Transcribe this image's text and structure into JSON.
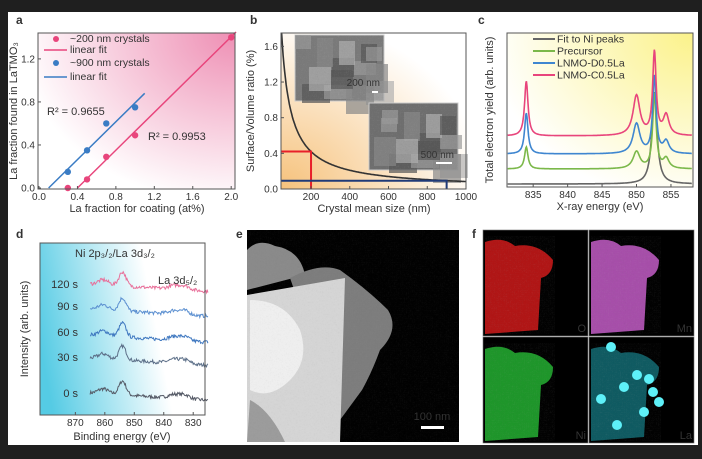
{
  "panel_labels": [
    "a",
    "b",
    "c",
    "d",
    "e",
    "f"
  ],
  "chart_data": [
    {
      "id": "a",
      "type": "scatter",
      "xlabel": "La fraction for coating (at%)",
      "ylabel": "La fraction found in LaTMO₃",
      "xlim": [
        0,
        2.05
      ],
      "ylim": [
        0,
        1.45
      ],
      "xticks": [
        "0.0",
        "0.4",
        "0.8",
        "1.2",
        "1.6",
        "2.0"
      ],
      "yticks": [
        "0.0",
        "0.4",
        "0.8",
        "1.2"
      ],
      "series": [
        {
          "name": "~200 nm crystals",
          "fit_name": "linear fit",
          "color": "#e8457c",
          "x": [
            0.3,
            0.5,
            0.7,
            1.0,
            2.0
          ],
          "y": [
            0.0,
            0.08,
            0.29,
            0.49,
            1.4
          ],
          "fit": {
            "x": [
              0.4,
              2.05
            ],
            "y": [
              0.0,
              1.45
            ]
          },
          "annotation": "R² = 0.9953"
        },
        {
          "name": "~900 nm crystals",
          "fit_name": "linear fit",
          "color": "#3a7cc4",
          "x": [
            0.3,
            0.5,
            0.7,
            1.0
          ],
          "y": [
            0.15,
            0.35,
            0.6,
            0.75
          ],
          "fit": {
            "x": [
              0.1,
              1.1
            ],
            "y": [
              0.0,
              0.88
            ]
          },
          "annotation": "R² = 0.9655"
        }
      ],
      "legend": "top-left",
      "background": "#f3a6c4"
    },
    {
      "id": "b",
      "type": "line",
      "xlabel": "Crystal mean size (nm)",
      "ylabel": "Surface/Volume ratio (%)",
      "xlim": [
        45,
        1000
      ],
      "ylim": [
        0,
        1.75
      ],
      "xticks": [
        "200",
        "400",
        "600",
        "800",
        "1000"
      ],
      "yticks": [
        "0.0",
        "0.4",
        "0.8",
        "1.2",
        "1.6"
      ],
      "curve": {
        "formula": "84/x",
        "color": "#333333"
      },
      "markers": [
        {
          "x": 200,
          "y": 0.42,
          "color": "#e8202a"
        },
        {
          "x": 900,
          "y": 0.093,
          "color": "#1f3a78"
        }
      ],
      "insets": [
        {
          "scale_bar": "200 nm"
        },
        {
          "scale_bar": "500 nm"
        }
      ],
      "background": "#f6c98a"
    },
    {
      "id": "c",
      "type": "line",
      "xlabel": "X-ray energy (eV)",
      "ylabel": "Total electron yield (arb. units)",
      "xlim": [
        831.2,
        858.2
      ],
      "xticks": [
        "835",
        "840",
        "845",
        "850",
        "855"
      ],
      "series": [
        {
          "name": "Fit to Ni peaks",
          "color": "#666666"
        },
        {
          "name": "Precursor",
          "color": "#7bb84a"
        },
        {
          "name": "LNMO-D0.5La",
          "color": "#3f86d0"
        },
        {
          "name": "LNMO-C0.5La",
          "color": "#e8457c"
        }
      ],
      "peaks_eV": [
        834,
        850,
        852.6,
        854.3
      ],
      "legend": "top",
      "background": "#fbf39a"
    },
    {
      "id": "d",
      "type": "line",
      "xlabel": "Binding energy (eV)",
      "ylabel": "Intensity (arb. units)",
      "xlim": [
        882,
        826
      ],
      "x_reversed": true,
      "xticks": [
        "870",
        "860",
        "850",
        "840",
        "830"
      ],
      "annotations": [
        "Ni 2p₃/₂/La 3d₃/₂",
        "La 3d₅/₂"
      ],
      "series": [
        {
          "name": "0 s",
          "color": "#555a66"
        },
        {
          "name": "30 s",
          "color": "#5c6f88"
        },
        {
          "name": "60 s",
          "color": "#3f78c0"
        },
        {
          "name": "90 s",
          "color": "#5b8fd0"
        },
        {
          "name": "120 s",
          "color": "#e8709a"
        }
      ],
      "background": "#5fcfe6"
    }
  ],
  "panel_e": {
    "scale_bar": "100 nm"
  },
  "panel_f": {
    "maps": [
      {
        "element": "O",
        "color": "#d01818"
      },
      {
        "element": "Mn",
        "color": "#c45cc8"
      },
      {
        "element": "Ni",
        "color": "#22b030"
      },
      {
        "element": "La",
        "color": "#20c8d8"
      }
    ]
  }
}
